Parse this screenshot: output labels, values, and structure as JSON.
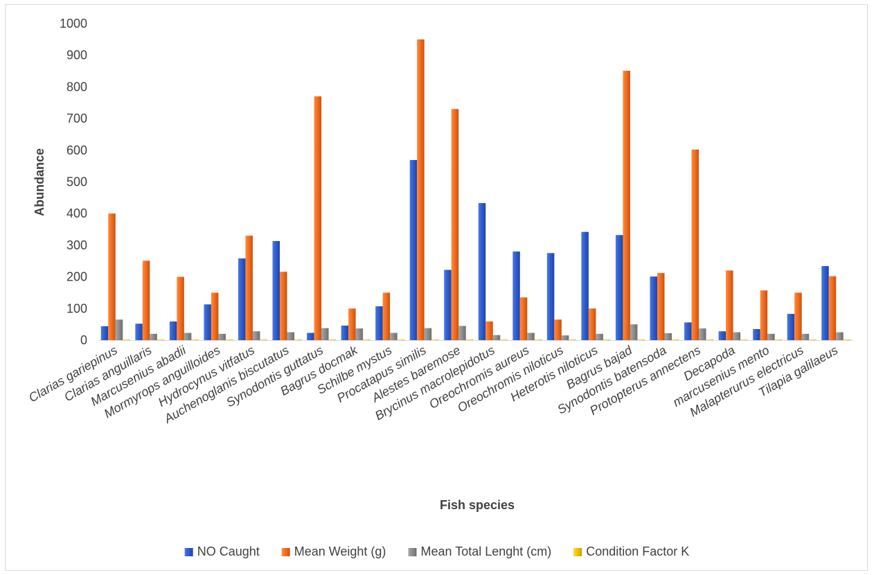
{
  "chart_data": {
    "type": "bar",
    "xlabel": "Fish species",
    "ylabel": "Abundance",
    "ylim": [
      0,
      1000
    ],
    "yticks": [
      0,
      100,
      200,
      300,
      400,
      500,
      600,
      700,
      800,
      900,
      1000
    ],
    "grid": false,
    "legend_position": "bottom",
    "categories": [
      "Clarias gariepinus",
      "Clarias anguillaris",
      "Marcusenius abadii",
      "Mormyrops anguilloides",
      "Hydrocynus vitfatus",
      "Auchenoglanis biscutatus",
      "Synodontis guttatus",
      "Bagrus docmak",
      "Schilbe mystus",
      "Procatapus similis",
      "Alestes baremose",
      "Brycinus macrolepidotus",
      "Oreochromis aureus",
      "Oreochromis niloticus",
      "Heterotis niloticus",
      "Bagrus bajad",
      "Synodontis batensoda",
      "Protopterus annectens",
      "Decapoda",
      "marcusenius mento",
      "Malapterurus electricus",
      "Tilapia galilaeus"
    ],
    "series": [
      {
        "name": "NO Caught",
        "color": "#2e5bcc",
        "values": [
          44,
          52,
          59,
          113,
          258,
          313,
          23,
          46,
          107,
          569,
          222,
          433,
          280,
          275,
          342,
          332,
          201,
          56,
          28,
          35,
          83,
          234
        ]
      },
      {
        "name": "Mean Weight (g)",
        "color": "#f26b1d",
        "values": [
          400,
          251,
          200,
          150,
          330,
          216,
          770,
          100,
          150,
          950,
          730,
          59,
          135,
          65,
          100,
          851,
          212,
          602,
          220,
          157,
          150,
          202
        ]
      },
      {
        "name": "Mean Total Lenght (cm)",
        "color": "#8c8c8c",
        "values": [
          65,
          20,
          23,
          20,
          28,
          25,
          38,
          37,
          23,
          38,
          45,
          16,
          23,
          15,
          20,
          50,
          22,
          37,
          25,
          20,
          20,
          25
        ]
      },
      {
        "name": "Condition Factor K",
        "color": "#f2c200",
        "values": [
          1.2,
          1.3,
          1.1,
          1.0,
          0.9,
          0.9,
          1.0,
          1.2,
          0.9,
          1.1,
          1.0,
          1.2,
          1.3,
          1.5,
          1.0,
          1.1,
          1.0,
          0.9,
          1.0,
          1.0,
          1.1,
          1.3
        ]
      }
    ]
  }
}
